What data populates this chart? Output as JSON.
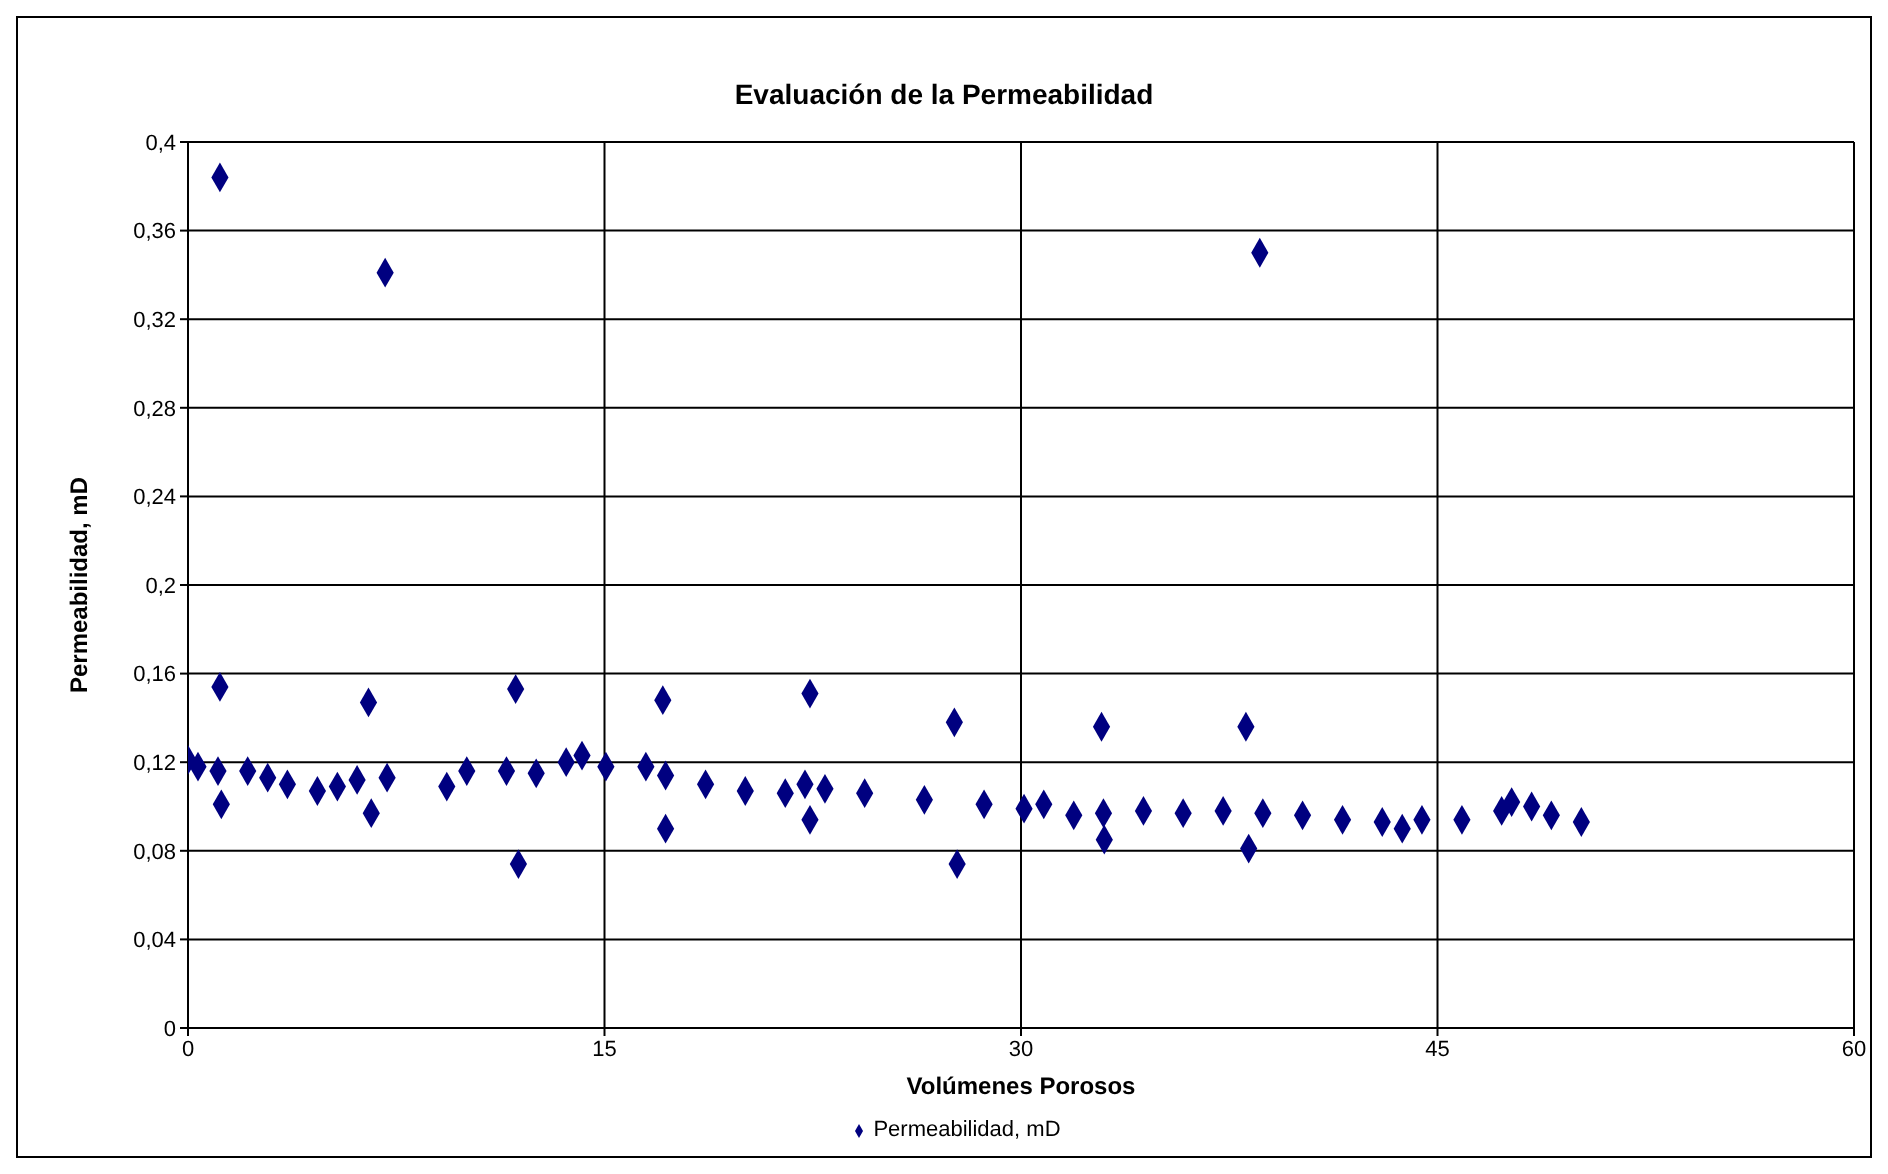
{
  "chart_data": {
    "type": "scatter",
    "title": "Evaluación de la Permeabilidad",
    "xlabel": "Volúmenes Porosos",
    "ylabel": "Permeabilidad, mD",
    "x": [
      0,
      0.36,
      1.08,
      1.15,
      1.15,
      1.2,
      2.15,
      2.87,
      3.58,
      4.66,
      5.38,
      6.09,
      6.5,
      6.6,
      7.1,
      7.17,
      9.32,
      10.04,
      11.47,
      11.8,
      11.9,
      12.54,
      13.62,
      14.19,
      15.05,
      16.49,
      17.1,
      17.2,
      17.2,
      18.64,
      20.07,
      21.51,
      22.22,
      22.4,
      22.4,
      22.94,
      24.37,
      26.52,
      27.6,
      27.7,
      28.67,
      30.11,
      30.82,
      31.9,
      32.9,
      32.97,
      33.0,
      34.41,
      35.84,
      37.28,
      38.1,
      38.2,
      38.6,
      38.71,
      40.14,
      41.58,
      43.01,
      43.73,
      44.44,
      45.88,
      47.31,
      47.67,
      48.39,
      49.1,
      50.18
    ],
    "series": [
      {
        "name": "Permeabilidad, mD",
        "color": "#000080",
        "values": [
          0.121,
          0.118,
          0.116,
          0.384,
          0.154,
          0.101,
          0.116,
          0.113,
          0.11,
          0.107,
          0.109,
          0.112,
          0.147,
          0.097,
          0.341,
          0.113,
          0.109,
          0.116,
          0.116,
          0.153,
          0.074,
          0.115,
          0.12,
          0.123,
          0.118,
          0.118,
          0.148,
          0.114,
          0.09,
          0.11,
          0.107,
          0.106,
          0.11,
          0.151,
          0.094,
          0.108,
          0.106,
          0.103,
          0.138,
          0.074,
          0.101,
          0.099,
          0.101,
          0.096,
          0.136,
          0.097,
          0.085,
          0.098,
          0.097,
          0.098,
          0.136,
          0.081,
          0.35,
          0.097,
          0.096,
          0.094,
          0.093,
          0.09,
          0.094,
          0.094,
          0.098,
          0.102,
          0.1,
          0.096,
          0.093
        ]
      }
    ],
    "xlim": [
      0,
      60
    ],
    "xticks": [
      0,
      15,
      30,
      45,
      60
    ],
    "ylim": [
      0,
      0.4
    ],
    "yticks": [
      0,
      {
        "value": 0.04,
        "label": "0,04"
      },
      {
        "value": 0.08,
        "label": "0,08"
      },
      {
        "value": 0.12,
        "label": "0,12"
      },
      {
        "value": 0.16,
        "label": "0,16"
      },
      {
        "value": 0.2,
        "label": "0,2"
      },
      {
        "value": 0.24,
        "label": "0,24"
      },
      {
        "value": 0.28,
        "label": "0,28"
      },
      {
        "value": 0.32,
        "label": "0,32"
      },
      {
        "value": 0.36,
        "label": "0,36"
      },
      {
        "value": 0.4,
        "label": "0,4"
      }
    ],
    "grid": true,
    "legend": "bottom",
    "marker": "diamond"
  }
}
